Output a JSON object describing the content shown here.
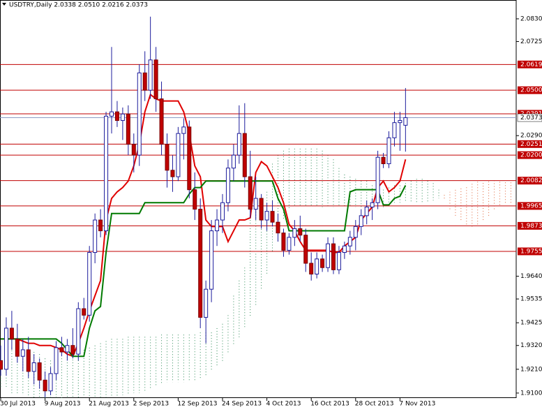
{
  "chart_data": {
    "type": "candlestick",
    "title": "USDTRY,Daily  2.0338 2.0510 2.0216 2.0373",
    "categories": [
      "30 Jul 2013",
      null,
      null,
      null,
      null,
      null,
      null,
      null,
      "9 Aug 2013",
      null,
      null,
      null,
      null,
      null,
      null,
      null,
      "21 Aug 2013",
      null,
      null,
      null,
      null,
      null,
      null,
      null,
      "2 Sep 2013",
      null,
      null,
      null,
      null,
      null,
      null,
      null,
      "12 Sep 2013",
      null,
      null,
      null,
      null,
      null,
      null,
      null,
      "24 Sep 2013",
      null,
      null,
      null,
      null,
      null,
      null,
      null,
      "4 Oct 2013",
      null,
      null,
      null,
      null,
      null,
      null,
      null,
      "16 Oct 2013",
      null,
      null,
      null,
      null,
      null,
      null,
      null,
      "28 Oct 2013",
      null,
      null,
      null,
      null,
      null,
      null,
      null,
      "7 Nov 2013",
      null
    ],
    "ohlc": [
      [
        1.925,
        1.932,
        1.918,
        1.921
      ],
      [
        1.921,
        1.945,
        1.918,
        1.94
      ],
      [
        1.94,
        1.948,
        1.93,
        1.935
      ],
      [
        1.935,
        1.942,
        1.924,
        1.927
      ],
      [
        1.927,
        1.935,
        1.92,
        1.93
      ],
      [
        1.93,
        1.936,
        1.917,
        1.92
      ],
      [
        1.92,
        1.928,
        1.914,
        1.924
      ],
      [
        1.924,
        1.926,
        1.912,
        1.916
      ],
      [
        1.916,
        1.92,
        1.908,
        1.911
      ],
      [
        1.911,
        1.922,
        1.909,
        1.919
      ],
      [
        1.919,
        1.934,
        1.916,
        1.931
      ],
      [
        1.931,
        1.936,
        1.927,
        1.929
      ],
      [
        1.929,
        1.935,
        1.925,
        1.932
      ],
      [
        1.932,
        1.94,
        1.926,
        1.928
      ],
      [
        1.928,
        1.952,
        1.925,
        1.949
      ],
      [
        1.949,
        1.954,
        1.944,
        1.946
      ],
      [
        1.946,
        1.978,
        1.943,
        1.975
      ],
      [
        1.975,
        1.993,
        1.97,
        1.99
      ],
      [
        1.99,
        1.995,
        1.982,
        1.985
      ],
      [
        1.985,
        2.04,
        1.983,
        2.038
      ],
      [
        2.038,
        2.07,
        2.03,
        2.04
      ],
      [
        2.04,
        2.045,
        2.033,
        2.036
      ],
      [
        2.036,
        2.042,
        2.027,
        2.039
      ],
      [
        2.039,
        2.043,
        2.02,
        2.025
      ],
      [
        2.025,
        2.03,
        2.012,
        2.02
      ],
      [
        2.02,
        2.062,
        2.015,
        2.058
      ],
      [
        2.058,
        2.068,
        2.045,
        2.05
      ],
      [
        2.05,
        2.084,
        2.046,
        2.064
      ],
      [
        2.064,
        2.07,
        2.04,
        2.046
      ],
      [
        2.046,
        2.054,
        2.02,
        2.025
      ],
      [
        2.025,
        2.03,
        2.005,
        2.013
      ],
      [
        2.013,
        2.02,
        2.003,
        2.01
      ],
      [
        2.01,
        2.033,
        2.008,
        2.03
      ],
      [
        2.03,
        2.037,
        2.018,
        2.033
      ],
      [
        2.033,
        2.036,
        2.0,
        2.004
      ],
      [
        2.004,
        2.012,
        1.99,
        1.995
      ],
      [
        1.995,
        2.0,
        1.94,
        1.945
      ],
      [
        1.945,
        1.962,
        1.933,
        1.958
      ],
      [
        1.958,
        1.99,
        1.952,
        1.985
      ],
      [
        1.985,
        1.995,
        1.978,
        1.99
      ],
      [
        1.99,
        2.002,
        1.984,
        1.998
      ],
      [
        1.998,
        2.018,
        1.994,
        2.014
      ],
      [
        2.014,
        2.025,
        2.008,
        2.02
      ],
      [
        2.02,
        2.043,
        2.016,
        2.03
      ],
      [
        2.03,
        2.044,
        2.005,
        2.01
      ],
      [
        2.01,
        2.022,
        1.991,
        1.995
      ],
      [
        1.995,
        2.01,
        1.99,
        2.0
      ],
      [
        2.0,
        2.002,
        1.986,
        1.99
      ],
      [
        1.99,
        1.998,
        1.985,
        1.994
      ],
      [
        1.994,
        1.999,
        1.987,
        1.989
      ],
      [
        1.989,
        1.993,
        1.98,
        1.984
      ],
      [
        1.984,
        1.986,
        1.973,
        1.976
      ],
      [
        1.976,
        1.984,
        1.974,
        1.982
      ],
      [
        1.982,
        1.99,
        1.978,
        1.986
      ],
      [
        1.986,
        1.992,
        1.98,
        1.983
      ],
      [
        1.983,
        1.986,
        1.966,
        1.97
      ],
      [
        1.97,
        1.975,
        1.962,
        1.965
      ],
      [
        1.965,
        1.975,
        1.963,
        1.972
      ],
      [
        1.972,
        1.974,
        1.966,
        1.968
      ],
      [
        1.968,
        1.982,
        1.966,
        1.979
      ],
      [
        1.979,
        1.982,
        1.965,
        1.967
      ],
      [
        1.967,
        1.978,
        1.965,
        1.975
      ],
      [
        1.975,
        1.98,
        1.972,
        1.978
      ],
      [
        1.978,
        1.985,
        1.974,
        1.982
      ],
      [
        1.982,
        1.99,
        1.976,
        1.987
      ],
      [
        1.987,
        1.995,
        1.983,
        1.992
      ],
      [
        1.992,
        1.999,
        1.988,
        1.996
      ],
      [
        1.996,
        2.0,
        1.99,
        1.998
      ],
      [
        1.998,
        2.022,
        1.995,
        2.019
      ],
      [
        2.019,
        2.021,
        2.014,
        2.016
      ],
      [
        2.016,
        2.031,
        2.014,
        2.028
      ],
      [
        2.028,
        2.04,
        2.024,
        2.035
      ],
      [
        2.035,
        2.04,
        2.022,
        2.036
      ],
      [
        2.0338,
        2.051,
        2.0216,
        2.0373
      ]
    ],
    "bull_color": "#ffffff",
    "bull_edge": "#1c1c9c",
    "bear_color": "#c00000",
    "bear_edge": "#7a0000",
    "lines": [
      {
        "color": "#e00000",
        "values": [
          1.935,
          1.935,
          1.935,
          1.935,
          1.934,
          1.933,
          1.933,
          1.932,
          1.932,
          1.932,
          1.931,
          1.93,
          1.928,
          1.927,
          1.933,
          1.94,
          1.948,
          1.955,
          1.962,
          1.99,
          2.0,
          2.003,
          2.005,
          2.008,
          2.015,
          2.025,
          2.04,
          2.048,
          2.046,
          2.045,
          2.045,
          2.045,
          2.045,
          2.04,
          2.03,
          2.015,
          2.01,
          1.99,
          1.987,
          1.987,
          1.987,
          1.98,
          1.985,
          1.99,
          1.99,
          1.991,
          2.012,
          2.017,
          2.015,
          2.01,
          2.005,
          1.998,
          1.988,
          1.985,
          1.98,
          1.976,
          1.976,
          1.976,
          1.976,
          1.976,
          1.975,
          1.975,
          1.978,
          1.98,
          1.982,
          1.99,
          1.993,
          1.996,
          2.005,
          2.008,
          2.003,
          2.005,
          2.008,
          2.018
        ]
      },
      {
        "color": "#007a00",
        "values": [
          1.935,
          1.935,
          1.935,
          1.935,
          1.935,
          1.935,
          1.935,
          1.935,
          1.935,
          1.935,
          1.935,
          1.933,
          1.93,
          1.927,
          1.927,
          1.927,
          1.94,
          1.948,
          1.95,
          1.975,
          1.993,
          1.993,
          1.993,
          1.993,
          1.993,
          1.993,
          1.998,
          1.998,
          1.998,
          1.998,
          1.998,
          1.998,
          1.998,
          1.998,
          2.002,
          2.005,
          2.005,
          2.008,
          2.008,
          2.008,
          2.008,
          2.008,
          2.008,
          2.008,
          2.008,
          2.008,
          2.008,
          2.008,
          2.008,
          2.008,
          2.0,
          1.995,
          1.985,
          1.985,
          1.985,
          1.985,
          1.985,
          1.985,
          1.985,
          1.985,
          1.985,
          1.985,
          1.985,
          2.003,
          2.004,
          2.004,
          2.004,
          2.004,
          2.004,
          1.997,
          1.997,
          2.0,
          2.001,
          2.006
        ]
      }
    ],
    "cloud": {
      "up_color": "#2e8b57",
      "down_color": "#e0653a",
      "span_a": [
        1.93,
        1.93,
        1.931,
        1.931,
        1.931,
        1.93,
        1.929,
        1.928,
        1.926,
        1.925,
        1.925,
        1.926,
        1.928,
        1.928,
        1.929,
        1.93,
        1.931,
        1.932,
        1.933,
        1.934,
        1.935,
        1.935,
        1.935,
        1.936,
        1.936,
        1.936,
        1.936,
        1.936,
        1.936,
        1.937,
        1.937,
        1.937,
        1.937,
        1.937,
        1.937,
        1.937,
        1.938,
        1.938,
        1.938,
        1.94,
        1.942,
        1.946,
        1.955,
        1.962,
        1.968,
        1.99,
        1.995,
        2.0,
        2.003,
        2.016,
        2.02,
        2.022,
        2.023,
        2.023,
        2.023,
        2.023,
        2.023,
        2.023,
        2.022,
        2.02,
        2.018,
        2.014,
        2.011,
        2.01,
        2.009,
        2.008,
        2.008,
        2.006,
        2.005,
        2.004,
        2.005,
        2.006,
        2.006,
        2.007,
        2.008,
        2.009,
        2.009,
        2.008,
        2.007,
        2.004,
        2.0,
        1.995,
        1.992,
        1.99,
        1.988,
        1.987,
        1.988,
        1.99,
        1.992,
        1.995,
        1.997,
        1.998,
        1.998
      ],
      "span_b": [
        1.912,
        1.912,
        1.91,
        1.91,
        1.909,
        1.909,
        1.908,
        1.908,
        1.907,
        1.907,
        1.907,
        1.907,
        1.907,
        1.908,
        1.908,
        1.908,
        1.908,
        1.908,
        1.908,
        1.908,
        1.908,
        1.908,
        1.909,
        1.909,
        1.91,
        1.91,
        1.911,
        1.912,
        1.913,
        1.914,
        1.915,
        1.915,
        1.915,
        1.915,
        1.916,
        1.916,
        1.917,
        1.918,
        1.92,
        1.922,
        1.924,
        1.928,
        1.932,
        1.935,
        1.94,
        1.945,
        1.95,
        1.958,
        1.965,
        1.975,
        1.985,
        1.99,
        1.995,
        1.996,
        1.996,
        1.996,
        1.996,
        1.996,
        1.996,
        1.996,
        1.996,
        1.996,
        1.996,
        1.996,
        1.996,
        1.996,
        1.996,
        1.996,
        1.996,
        1.996,
        1.996,
        1.998,
        1.998,
        1.998,
        1.998,
        1.998,
        1.998,
        1.998,
        1.999,
        2.0,
        2.002,
        2.003,
        2.004,
        2.005,
        2.006,
        2.007,
        2.008,
        2.008,
        2.008,
        2.008,
        2.008,
        2.008,
        2.008
      ]
    },
    "level_color": "#c00000",
    "levels": [
      2.0619,
      {
        "value": 2.05,
        "label": "2.0500"
      },
      2.0391,
      2.0251,
      {
        "value": 2.02,
        "label": "2.0200"
      },
      2.0082,
      1.9965,
      1.9873,
      1.9755
    ],
    "price_line": {
      "value": 2.0373,
      "color": "#8c9cc4"
    },
    "ylim": [
      1.9077,
      2.0917
    ],
    "yticks": [
      {
        "value": 2.083,
        "label": "2.0830"
      },
      2.0725,
      {
        "value": 2.029,
        "label": "2.0290"
      },
      {
        "value": 1.964,
        "label": "1.9640"
      },
      1.9535,
      1.9425,
      {
        "value": 1.932,
        "label": "1.9320"
      },
      {
        "value": 1.921,
        "label": "1.9210"
      },
      {
        "value": 1.91,
        "label": "1.9100"
      }
    ]
  }
}
